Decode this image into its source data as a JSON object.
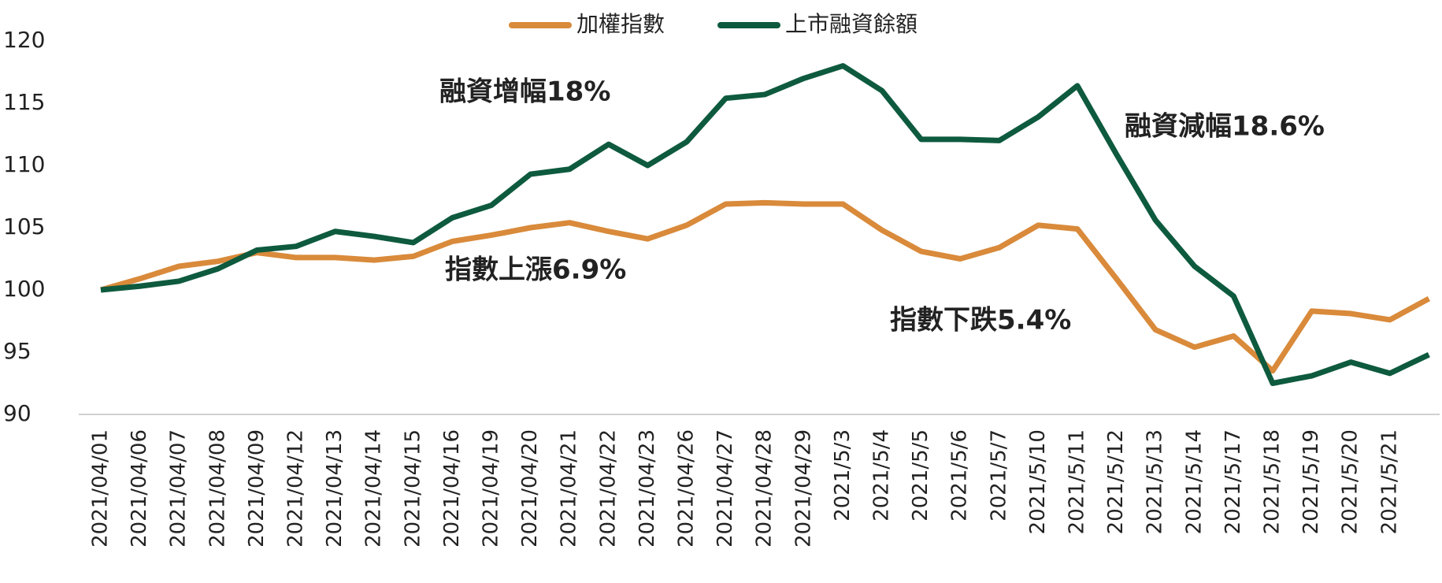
{
  "chart_data": {
    "type": "line",
    "categories": [
      "2021/04/01",
      "2021/04/06",
      "2021/04/07",
      "2021/04/08",
      "2021/04/09",
      "2021/04/12",
      "2021/04/13",
      "2021/04/14",
      "2021/04/15",
      "2021/04/16",
      "2021/04/19",
      "2021/04/20",
      "2021/04/21",
      "2021/04/22",
      "2021/04/23",
      "2021/04/26",
      "2021/04/27",
      "2021/04/28",
      "2021/04/29",
      "2021/5/3",
      "2021/5/4",
      "2021/5/5",
      "2021/5/6",
      "2021/5/7",
      "2021/5/10",
      "2021/5/11",
      "2021/5/12",
      "2021/5/13",
      "2021/5/14",
      "2021/5/17",
      "2021/5/18",
      "2021/5/19",
      "2021/5/20",
      "2021/5/21",
      null
    ],
    "series": [
      {
        "name": "加權指數",
        "color": "#d98a3a",
        "values": [
          100,
          100.9,
          101.9,
          102.3,
          103,
          102.6,
          102.6,
          102.4,
          102.7,
          103.9,
          104.4,
          105,
          105.4,
          104.7,
          104.1,
          105.2,
          106.9,
          107,
          106.9,
          106.9,
          104.8,
          103.1,
          102.5,
          103.4,
          105.2,
          104.9,
          100.9,
          96.8,
          95.4,
          96.3,
          93.5,
          98.3,
          98.1,
          97.6,
          99.3
        ]
      },
      {
        "name": "上市融資餘額",
        "color": "#0e5a3e",
        "values": [
          100,
          100.3,
          100.7,
          101.7,
          103.2,
          103.5,
          104.7,
          104.3,
          103.8,
          105.8,
          106.8,
          109.3,
          109.7,
          111.7,
          110,
          111.9,
          115.4,
          115.7,
          117,
          118,
          116,
          112.1,
          112.1,
          112,
          113.9,
          116.4,
          110.9,
          105.6,
          101.9,
          99.5,
          92.5,
          93.1,
          94.2,
          93.3,
          94.8
        ]
      }
    ],
    "annotations": [
      "融資增幅18%",
      "指數上漲6.9%",
      "融資減幅18.6%",
      "指數下跌5.4%"
    ],
    "ylim": [
      90,
      120
    ],
    "yticks": [
      90,
      95,
      100,
      105,
      110,
      115,
      120
    ],
    "grid": false,
    "legend": "top"
  }
}
